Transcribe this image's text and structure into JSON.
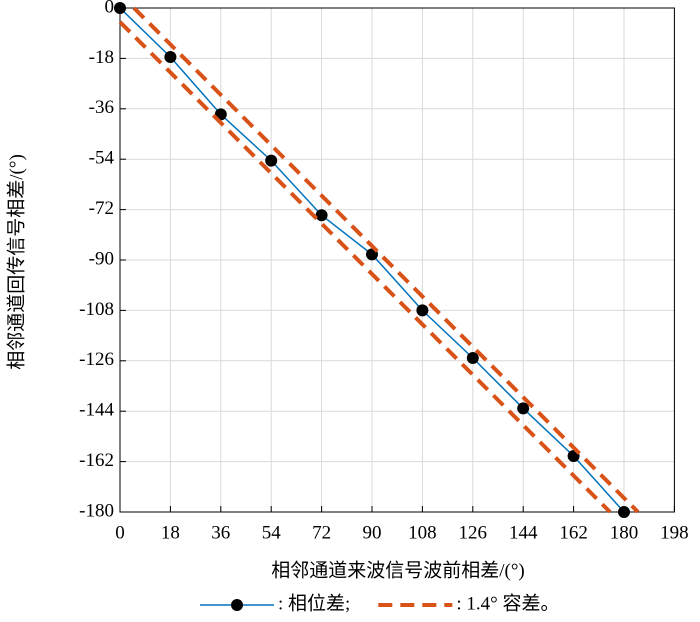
{
  "chart_data": {
    "type": "line",
    "xlabel": "相邻通道来波信号波前相差/(°)",
    "ylabel": "相邻通道回传信号相差/(°)",
    "xlim": [
      0,
      198
    ],
    "xticks": [
      0,
      18,
      36,
      54,
      72,
      90,
      108,
      126,
      144,
      162,
      180,
      198
    ],
    "ylim": [
      -180,
      0
    ],
    "yticks": [
      0,
      -18,
      -36,
      -54,
      -72,
      -90,
      -108,
      -126,
      -144,
      -162,
      -180
    ],
    "grid": true,
    "series": [
      {
        "name": ": 相位差;",
        "color": "#0072bd",
        "marker_color": "#000000",
        "dashed": false,
        "x": [
          0,
          18,
          36,
          54,
          72,
          90,
          108,
          126,
          144,
          162,
          180
        ],
        "values": [
          0,
          -17.5,
          -38,
          -54.5,
          -74,
          -88,
          -108,
          -125,
          -143,
          -160,
          -180
        ]
      },
      {
        "name": ": 1.4° 容差。",
        "color": "#d95319",
        "dashed": true,
        "x": [
          5,
          185
        ],
        "values": [
          0,
          -180
        ]
      },
      {
        "color": "#d95319",
        "dashed": true,
        "x": [
          0,
          175
        ],
        "values": [
          -5,
          -180
        ]
      }
    ]
  }
}
